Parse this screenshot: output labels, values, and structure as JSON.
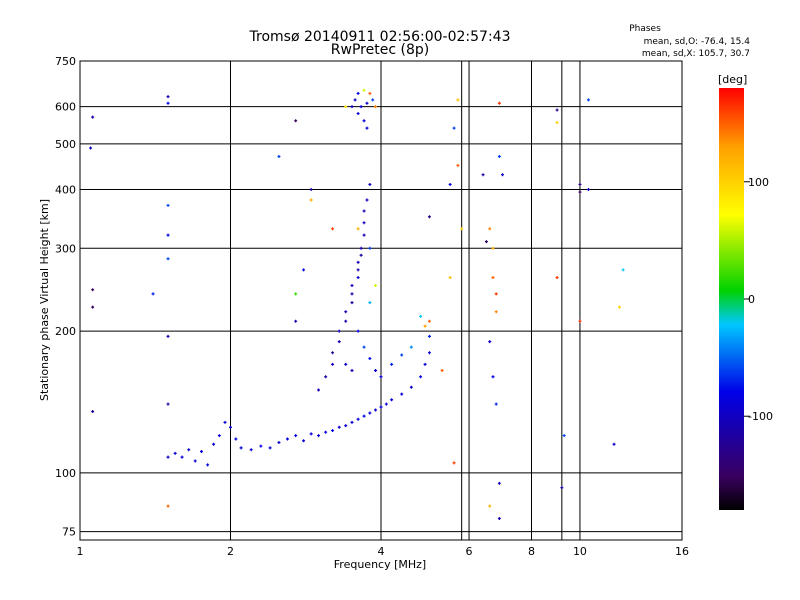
{
  "chart_data": {
    "type": "scatter",
    "title": "Tromsø 20140911 02:56:00-02:57:43",
    "subtitle": "RwPretec (8p)",
    "stats_header": "Phases",
    "stats_o": "mean, sd,O: -76.4, 15.4",
    "stats_x": "mean, sd,X: 105.7, 30.7",
    "xlabel": "Frequency [MHz]",
    "ylabel": "Stationary phase Virtual Height [km]",
    "xscale": "log",
    "yscale": "log",
    "xlim": [
      1,
      16
    ],
    "ylim": [
      72,
      750
    ],
    "xticks": [
      1,
      2,
      4,
      6,
      8,
      10,
      16
    ],
    "xtick_labels": [
      "1",
      "2",
      "4",
      "6",
      "8",
      "10",
      "16"
    ],
    "xgrid_extra": [
      5.8,
      9.2
    ],
    "yticks": [
      75,
      100,
      200,
      300,
      400,
      500,
      600,
      750
    ],
    "ytick_labels": [
      "75",
      "100",
      "200",
      "300",
      "400",
      "500",
      "600",
      "750"
    ],
    "grid": true,
    "colorbar": {
      "label": "[deg]",
      "range": [
        -180,
        180
      ],
      "ticks": [
        100,
        0,
        -100
      ],
      "tick_labels": [
        "100",
        "0",
        "-100"
      ]
    },
    "series": [
      {
        "name": "",
        "points": [
          {
            "x": 1.5,
            "y": 108,
            "p": -95
          },
          {
            "x": 1.55,
            "y": 110,
            "p": -90
          },
          {
            "x": 1.6,
            "y": 108,
            "p": -85
          },
          {
            "x": 1.65,
            "y": 112,
            "p": -92
          },
          {
            "x": 1.7,
            "y": 106,
            "p": -88
          },
          {
            "x": 1.75,
            "y": 111,
            "p": -95
          },
          {
            "x": 1.8,
            "y": 104,
            "p": -80
          },
          {
            "x": 1.85,
            "y": 115,
            "p": -90
          },
          {
            "x": 1.9,
            "y": 120,
            "p": -85
          },
          {
            "x": 1.95,
            "y": 128,
            "p": -88
          },
          {
            "x": 2.0,
            "y": 125,
            "p": -92
          },
          {
            "x": 2.05,
            "y": 118,
            "p": -80
          },
          {
            "x": 2.1,
            "y": 113,
            "p": -85
          },
          {
            "x": 2.2,
            "y": 112,
            "p": -90
          },
          {
            "x": 2.3,
            "y": 114,
            "p": -82
          },
          {
            "x": 2.4,
            "y": 113,
            "p": -88
          },
          {
            "x": 2.5,
            "y": 116,
            "p": -95
          },
          {
            "x": 2.6,
            "y": 118,
            "p": -80
          },
          {
            "x": 2.7,
            "y": 120,
            "p": -85
          },
          {
            "x": 2.8,
            "y": 117,
            "p": -90
          },
          {
            "x": 2.9,
            "y": 121,
            "p": -88
          },
          {
            "x": 3.0,
            "y": 120,
            "p": -92
          },
          {
            "x": 3.1,
            "y": 122,
            "p": -85
          },
          {
            "x": 3.2,
            "y": 123,
            "p": -80
          },
          {
            "x": 3.3,
            "y": 125,
            "p": -88
          },
          {
            "x": 3.4,
            "y": 126,
            "p": -95
          },
          {
            "x": 3.5,
            "y": 128,
            "p": -90
          },
          {
            "x": 3.6,
            "y": 130,
            "p": -85
          },
          {
            "x": 3.7,
            "y": 132,
            "p": -80
          },
          {
            "x": 3.8,
            "y": 134,
            "p": -88
          },
          {
            "x": 3.9,
            "y": 136,
            "p": -92
          },
          {
            "x": 4.0,
            "y": 138,
            "p": -85
          },
          {
            "x": 4.1,
            "y": 140,
            "p": -90
          },
          {
            "x": 4.2,
            "y": 143,
            "p": -82
          },
          {
            "x": 4.4,
            "y": 147,
            "p": -88
          },
          {
            "x": 4.6,
            "y": 152,
            "p": -95
          },
          {
            "x": 4.8,
            "y": 160,
            "p": -80
          },
          {
            "x": 4.9,
            "y": 170,
            "p": -85
          },
          {
            "x": 5.0,
            "y": 180,
            "p": -90
          },
          {
            "x": 5.0,
            "y": 195,
            "p": -70
          },
          {
            "x": 5.0,
            "y": 210,
            "p": 150
          },
          {
            "x": 4.9,
            "y": 205,
            "p": 130
          },
          {
            "x": 4.8,
            "y": 215,
            "p": -20
          },
          {
            "x": 3.0,
            "y": 150,
            "p": -110
          },
          {
            "x": 3.1,
            "y": 160,
            "p": -115
          },
          {
            "x": 3.2,
            "y": 170,
            "p": -105
          },
          {
            "x": 3.2,
            "y": 180,
            "p": -120
          },
          {
            "x": 3.3,
            "y": 190,
            "p": -110
          },
          {
            "x": 3.3,
            "y": 200,
            "p": -100
          },
          {
            "x": 3.4,
            "y": 210,
            "p": -112
          },
          {
            "x": 3.4,
            "y": 220,
            "p": -105
          },
          {
            "x": 3.5,
            "y": 230,
            "p": -118
          },
          {
            "x": 3.5,
            "y": 240,
            "p": -108
          },
          {
            "x": 3.5,
            "y": 250,
            "p": -100
          },
          {
            "x": 3.6,
            "y": 260,
            "p": -95
          },
          {
            "x": 3.6,
            "y": 270,
            "p": -110
          },
          {
            "x": 3.6,
            "y": 280,
            "p": -105
          },
          {
            "x": 3.65,
            "y": 290,
            "p": -112
          },
          {
            "x": 3.65,
            "y": 300,
            "p": -98
          },
          {
            "x": 3.7,
            "y": 320,
            "p": -108
          },
          {
            "x": 3.7,
            "y": 340,
            "p": -102
          },
          {
            "x": 3.7,
            "y": 360,
            "p": -110
          },
          {
            "x": 3.75,
            "y": 380,
            "p": -100
          },
          {
            "x": 3.8,
            "y": 410,
            "p": -95
          },
          {
            "x": 3.6,
            "y": 200,
            "p": -80
          },
          {
            "x": 3.7,
            "y": 185,
            "p": -60
          },
          {
            "x": 3.8,
            "y": 175,
            "p": -75
          },
          {
            "x": 3.9,
            "y": 165,
            "p": -85
          },
          {
            "x": 4.0,
            "y": 160,
            "p": -90
          },
          {
            "x": 4.2,
            "y": 170,
            "p": -70
          },
          {
            "x": 4.4,
            "y": 178,
            "p": -60
          },
          {
            "x": 4.6,
            "y": 185,
            "p": -40
          },
          {
            "x": 3.4,
            "y": 170,
            "p": -100
          },
          {
            "x": 3.5,
            "y": 165,
            "p": -110
          },
          {
            "x": 3.8,
            "y": 230,
            "p": -30
          },
          {
            "x": 3.9,
            "y": 250,
            "p": 60
          },
          {
            "x": 3.6,
            "y": 330,
            "p": 120
          },
          {
            "x": 3.8,
            "y": 300,
            "p": -60
          },
          {
            "x": 3.5,
            "y": 600,
            "p": -100
          },
          {
            "x": 3.55,
            "y": 620,
            "p": -95
          },
          {
            "x": 3.6,
            "y": 580,
            "p": -90
          },
          {
            "x": 3.6,
            "y": 640,
            "p": -80
          },
          {
            "x": 3.65,
            "y": 600,
            "p": -85
          },
          {
            "x": 3.7,
            "y": 560,
            "p": -88
          },
          {
            "x": 3.7,
            "y": 650,
            "p": 60
          },
          {
            "x": 3.75,
            "y": 610,
            "p": -92
          },
          {
            "x": 3.8,
            "y": 640,
            "p": 150
          },
          {
            "x": 3.75,
            "y": 540,
            "p": -85
          },
          {
            "x": 3.85,
            "y": 620,
            "p": -60
          },
          {
            "x": 3.9,
            "y": 600,
            "p": 140
          },
          {
            "x": 1.06,
            "y": 245,
            "p": -150
          },
          {
            "x": 1.06,
            "y": 225,
            "p": -150
          },
          {
            "x": 1.06,
            "y": 570,
            "p": -110
          },
          {
            "x": 1.05,
            "y": 490,
            "p": -100
          },
          {
            "x": 1.06,
            "y": 135,
            "p": -120
          },
          {
            "x": 1.5,
            "y": 630,
            "p": -110
          },
          {
            "x": 1.5,
            "y": 610,
            "p": -80
          },
          {
            "x": 1.5,
            "y": 370,
            "p": -60
          },
          {
            "x": 1.5,
            "y": 320,
            "p": -80
          },
          {
            "x": 1.5,
            "y": 285,
            "p": -60
          },
          {
            "x": 1.5,
            "y": 195,
            "p": -110
          },
          {
            "x": 1.5,
            "y": 140,
            "p": -115
          },
          {
            "x": 1.5,
            "y": 85,
            "p": 150
          },
          {
            "x": 1.4,
            "y": 240,
            "p": -70
          },
          {
            "x": 2.5,
            "y": 470,
            "p": -60
          },
          {
            "x": 2.7,
            "y": 560,
            "p": -150
          },
          {
            "x": 2.9,
            "y": 400,
            "p": -120
          },
          {
            "x": 2.9,
            "y": 380,
            "p": 120
          },
          {
            "x": 2.8,
            "y": 270,
            "p": -80
          },
          {
            "x": 2.7,
            "y": 240,
            "p": 20
          },
          {
            "x": 2.7,
            "y": 210,
            "p": -110
          },
          {
            "x": 3.2,
            "y": 330,
            "p": 160
          },
          {
            "x": 3.4,
            "y": 600,
            "p": 90
          },
          {
            "x": 5.0,
            "y": 350,
            "p": -130
          },
          {
            "x": 5.5,
            "y": 260,
            "p": 110
          },
          {
            "x": 5.3,
            "y": 165,
            "p": 150
          },
          {
            "x": 5.5,
            "y": 410,
            "p": -80
          },
          {
            "x": 5.6,
            "y": 540,
            "p": -60
          },
          {
            "x": 5.7,
            "y": 620,
            "p": 110
          },
          {
            "x": 5.7,
            "y": 450,
            "p": 150
          },
          {
            "x": 5.8,
            "y": 330,
            "p": 100
          },
          {
            "x": 5.6,
            "y": 105,
            "p": 160
          },
          {
            "x": 6.4,
            "y": 430,
            "p": -110
          },
          {
            "x": 6.5,
            "y": 310,
            "p": -140
          },
          {
            "x": 6.6,
            "y": 330,
            "p": 140
          },
          {
            "x": 6.7,
            "y": 300,
            "p": 120
          },
          {
            "x": 6.7,
            "y": 260,
            "p": 150
          },
          {
            "x": 6.8,
            "y": 240,
            "p": 165
          },
          {
            "x": 6.8,
            "y": 220,
            "p": 140
          },
          {
            "x": 6.6,
            "y": 190,
            "p": -100
          },
          {
            "x": 6.7,
            "y": 160,
            "p": -80
          },
          {
            "x": 6.8,
            "y": 140,
            "p": -70
          },
          {
            "x": 6.9,
            "y": 610,
            "p": 165
          },
          {
            "x": 6.9,
            "y": 470,
            "p": -60
          },
          {
            "x": 7.0,
            "y": 430,
            "p": -100
          },
          {
            "x": 6.9,
            "y": 95,
            "p": -100
          },
          {
            "x": 6.9,
            "y": 80,
            "p": -110
          },
          {
            "x": 6.6,
            "y": 85,
            "p": 120
          },
          {
            "x": 9.0,
            "y": 590,
            "p": -130
          },
          {
            "x": 9.0,
            "y": 555,
            "p": 100
          },
          {
            "x": 9.0,
            "y": 260,
            "p": 165
          },
          {
            "x": 10.0,
            "y": 410,
            "p": -130
          },
          {
            "x": 10.0,
            "y": 395,
            "p": -150
          },
          {
            "x": 10.0,
            "y": 210,
            "p": 165
          },
          {
            "x": 10.4,
            "y": 620,
            "p": -60
          },
          {
            "x": 10.4,
            "y": 400,
            "p": -100
          },
          {
            "x": 12.0,
            "y": 225,
            "p": 100
          },
          {
            "x": 12.2,
            "y": 270,
            "p": -20
          },
          {
            "x": 9.3,
            "y": 120,
            "p": -60
          },
          {
            "x": 9.2,
            "y": 93,
            "p": -110
          },
          {
            "x": 11.7,
            "y": 115,
            "p": -100
          }
        ]
      }
    ]
  },
  "colorbar_stops": [
    "#000000",
    "#3a0060",
    "#0000e8",
    "#00c8ff",
    "#00d200",
    "#ffff00",
    "#ffa000",
    "#ff0000"
  ]
}
